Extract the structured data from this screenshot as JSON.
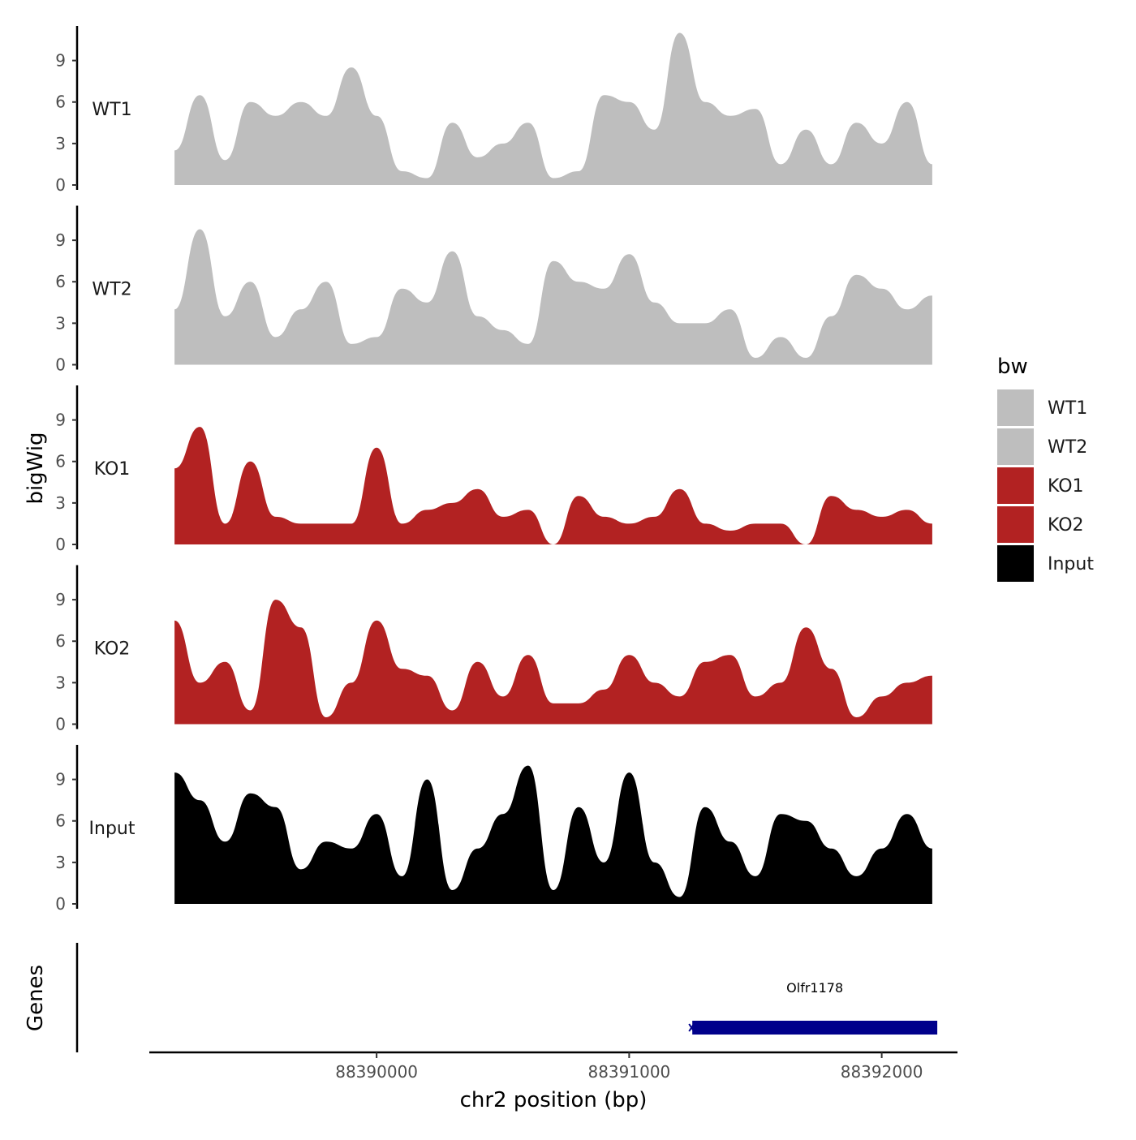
{
  "chart_data": {
    "type": "area",
    "y_axis_title": "bigWig",
    "x_axis_title": "chr2 position (bp)",
    "x_range": [
      88389100,
      88392300
    ],
    "x_ticks": [
      88390000,
      88391000,
      88392000
    ],
    "x_tick_labels": [
      "88390000",
      "88391000",
      "88392000"
    ],
    "y_range": [
      0,
      11.5
    ],
    "y_ticks": [
      0,
      3,
      6,
      9
    ],
    "y_tick_labels": [
      "0",
      "3",
      "6",
      "9"
    ],
    "legend": {
      "title": "bw",
      "entries": [
        {
          "label": "WT1",
          "color": "#bebebe"
        },
        {
          "label": "WT2",
          "color": "#bebebe"
        },
        {
          "label": "KO1",
          "color": "#b22222"
        },
        {
          "label": "KO2",
          "color": "#b22222"
        },
        {
          "label": "Input",
          "color": "#000000"
        }
      ]
    },
    "tracks": [
      {
        "name": "WT1",
        "color": "#bebebe",
        "x": [
          88389200,
          88389300,
          88389400,
          88389500,
          88389600,
          88389700,
          88389800,
          88389900,
          88390000,
          88390100,
          88390200,
          88390300,
          88390400,
          88390500,
          88390600,
          88390700,
          88390800,
          88390900,
          88391000,
          88391100,
          88391200,
          88391300,
          88391400,
          88391500,
          88391600,
          88391700,
          88391800,
          88391900,
          88392000,
          88392100,
          88392200
        ],
        "values": [
          2.5,
          6.5,
          1.8,
          6.0,
          5.0,
          6.0,
          5.0,
          8.5,
          5.0,
          1.0,
          0.5,
          4.5,
          2.0,
          3.0,
          4.5,
          0.5,
          1.0,
          6.5,
          6.0,
          4.0,
          11.0,
          6.0,
          5.0,
          5.5,
          1.5,
          4.0,
          1.5,
          4.5,
          3.0,
          6.0,
          1.5
        ]
      },
      {
        "name": "WT2",
        "color": "#bebebe",
        "x": [
          88389200,
          88389300,
          88389400,
          88389500,
          88389600,
          88389700,
          88389800,
          88389900,
          88390000,
          88390100,
          88390200,
          88390300,
          88390400,
          88390500,
          88390600,
          88390700,
          88390800,
          88390900,
          88391000,
          88391100,
          88391200,
          88391300,
          88391400,
          88391500,
          88391600,
          88391700,
          88391800,
          88391900,
          88392000,
          88392100,
          88392200
        ],
        "values": [
          4.0,
          9.8,
          3.5,
          6.0,
          2.0,
          4.0,
          6.0,
          1.5,
          2.0,
          5.5,
          4.5,
          8.2,
          3.5,
          2.5,
          1.5,
          7.5,
          6.0,
          5.5,
          8.0,
          4.5,
          3.0,
          3.0,
          4.0,
          0.5,
          2.0,
          0.5,
          3.5,
          6.5,
          5.5,
          4.0,
          5.0
        ]
      },
      {
        "name": "KO1",
        "color": "#b22222",
        "x": [
          88389200,
          88389300,
          88389400,
          88389500,
          88389600,
          88389700,
          88389800,
          88389900,
          88390000,
          88390100,
          88390200,
          88390300,
          88390400,
          88390500,
          88390600,
          88390700,
          88390800,
          88390900,
          88391000,
          88391100,
          88391200,
          88391300,
          88391400,
          88391500,
          88391600,
          88391700,
          88391800,
          88391900,
          88392000,
          88392100,
          88392200
        ],
        "values": [
          5.5,
          8.5,
          1.5,
          6.0,
          2.0,
          1.5,
          1.5,
          1.5,
          7.0,
          1.5,
          2.5,
          3.0,
          4.0,
          2.0,
          2.5,
          0.0,
          3.5,
          2.0,
          1.5,
          2.0,
          4.0,
          1.5,
          1.0,
          1.5,
          1.5,
          0.0,
          3.5,
          2.5,
          2.0,
          2.5,
          1.5
        ]
      },
      {
        "name": "KO2",
        "color": "#b22222",
        "x": [
          88389200,
          88389300,
          88389400,
          88389500,
          88389600,
          88389700,
          88389800,
          88389900,
          88390000,
          88390100,
          88390200,
          88390300,
          88390400,
          88390500,
          88390600,
          88390700,
          88390800,
          88390900,
          88391000,
          88391100,
          88391200,
          88391300,
          88391400,
          88391500,
          88391600,
          88391700,
          88391800,
          88391900,
          88392000,
          88392100,
          88392200
        ],
        "values": [
          7.5,
          3.0,
          4.5,
          1.0,
          9.0,
          7.0,
          0.5,
          3.0,
          7.5,
          4.0,
          3.5,
          1.0,
          4.5,
          2.0,
          5.0,
          1.5,
          1.5,
          2.5,
          5.0,
          3.0,
          2.0,
          4.5,
          5.0,
          2.0,
          3.0,
          7.0,
          4.0,
          0.5,
          2.0,
          3.0,
          3.5
        ]
      },
      {
        "name": "Input",
        "color": "#000000",
        "x": [
          88389200,
          88389300,
          88389400,
          88389500,
          88389600,
          88389700,
          88389800,
          88389900,
          88390000,
          88390100,
          88390200,
          88390300,
          88390400,
          88390500,
          88390600,
          88390700,
          88390800,
          88390900,
          88391000,
          88391100,
          88391200,
          88391300,
          88391400,
          88391500,
          88391600,
          88391700,
          88391800,
          88391900,
          88392000,
          88392100,
          88392200
        ],
        "values": [
          9.5,
          7.5,
          4.5,
          8.0,
          7.0,
          2.5,
          4.5,
          4.0,
          6.5,
          2.0,
          9.0,
          1.0,
          4.0,
          6.5,
          10.0,
          1.0,
          7.0,
          3.0,
          9.5,
          3.0,
          0.5,
          7.0,
          4.5,
          2.0,
          6.5,
          6.0,
          4.0,
          2.0,
          4.0,
          6.5,
          4.0
        ]
      }
    ],
    "genes": {
      "track_title": "Genes",
      "items": [
        {
          "name": "Olfr1178",
          "start": 88391250,
          "end": 88392220,
          "color": "#00008b"
        }
      ]
    }
  }
}
